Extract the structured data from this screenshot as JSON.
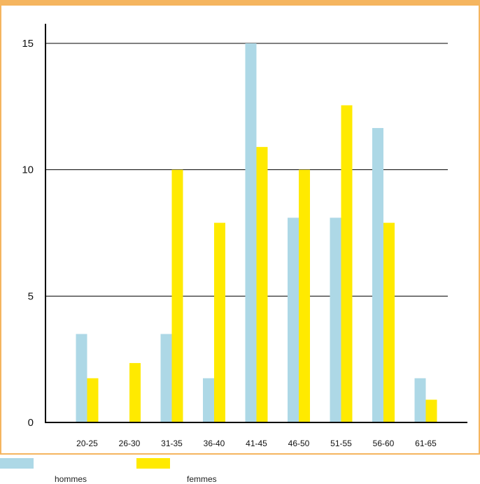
{
  "chart_data": {
    "type": "bar",
    "categories": [
      "20-25",
      "26-30",
      "31-35",
      "36-40",
      "41-45",
      "46-50",
      "51-55",
      "56-60",
      "61-65"
    ],
    "series": [
      {
        "name": "hommes",
        "color": "#add8e6",
        "values": [
          3.5,
          0,
          3.5,
          1.75,
          15,
          8.1,
          8.1,
          11.65,
          1.75
        ]
      },
      {
        "name": "femmes",
        "color": "#ffea00",
        "values": [
          1.75,
          2.35,
          10,
          7.9,
          10.9,
          10,
          12.55,
          7.9,
          0.9
        ]
      }
    ],
    "yticks": [
      0,
      5,
      10,
      15
    ],
    "ylim": [
      0,
      15
    ],
    "grid": true,
    "legend_position": "bottom-left"
  },
  "legend": {
    "hommes_label": "hommes",
    "femmes_label": "femmes"
  }
}
